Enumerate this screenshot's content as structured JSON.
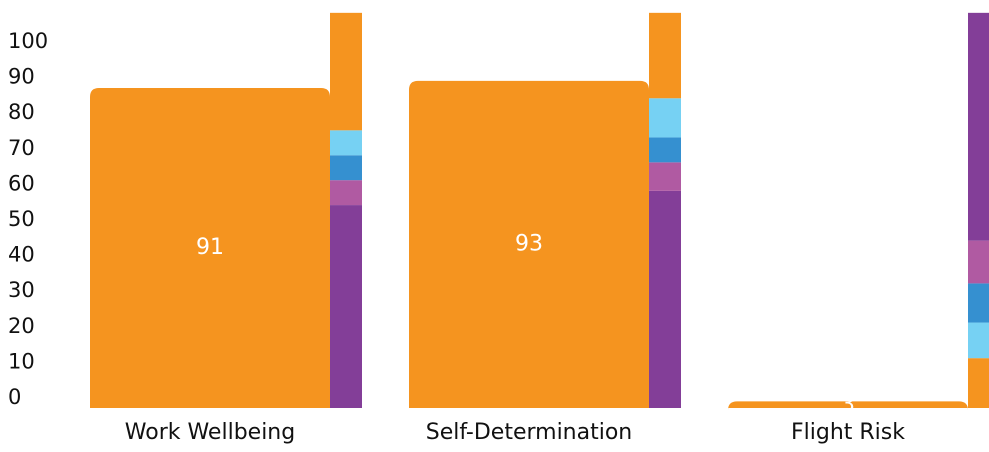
{
  "chart_data": {
    "type": "bar",
    "categories": [
      "Work Wellbeing",
      "Self-Determination",
      "Flight Risk"
    ],
    "values": [
      91,
      93,
      3
    ],
    "ylim": [
      0,
      100
    ],
    "yticks": [
      "0",
      "10",
      "20",
      "30",
      "40",
      "50",
      "60",
      "70",
      "80",
      "90",
      "100"
    ],
    "stacks": [
      [
        {
          "from": 0,
          "to": 57,
          "color": "#833e98"
        },
        {
          "from": 57,
          "to": 64,
          "color": "#b05aa2"
        },
        {
          "from": 64,
          "to": 71,
          "color": "#3590d0"
        },
        {
          "from": 71,
          "to": 78,
          "color": "#76d1f3"
        },
        {
          "from": 78,
          "to": 111,
          "color": "#f5941f"
        }
      ],
      [
        {
          "from": 0,
          "to": 61,
          "color": "#833e98"
        },
        {
          "from": 61,
          "to": 69,
          "color": "#b05aa2"
        },
        {
          "from": 69,
          "to": 76,
          "color": "#3590d0"
        },
        {
          "from": 76,
          "to": 87,
          "color": "#76d1f3"
        },
        {
          "from": 87,
          "to": 111,
          "color": "#f5941f"
        }
      ],
      [
        {
          "from": 0,
          "to": 14,
          "color": "#f5941f"
        },
        {
          "from": 14,
          "to": 24,
          "color": "#76d1f3"
        },
        {
          "from": 24,
          "to": 35,
          "color": "#3590d0"
        },
        {
          "from": 35,
          "to": 47,
          "color": "#b05aa2"
        },
        {
          "from": 47,
          "to": 111,
          "color": "#833e98"
        }
      ]
    ],
    "colors": {
      "bar": "#f5941f",
      "label": "#ffffff",
      "axis_text": "#111111"
    }
  }
}
